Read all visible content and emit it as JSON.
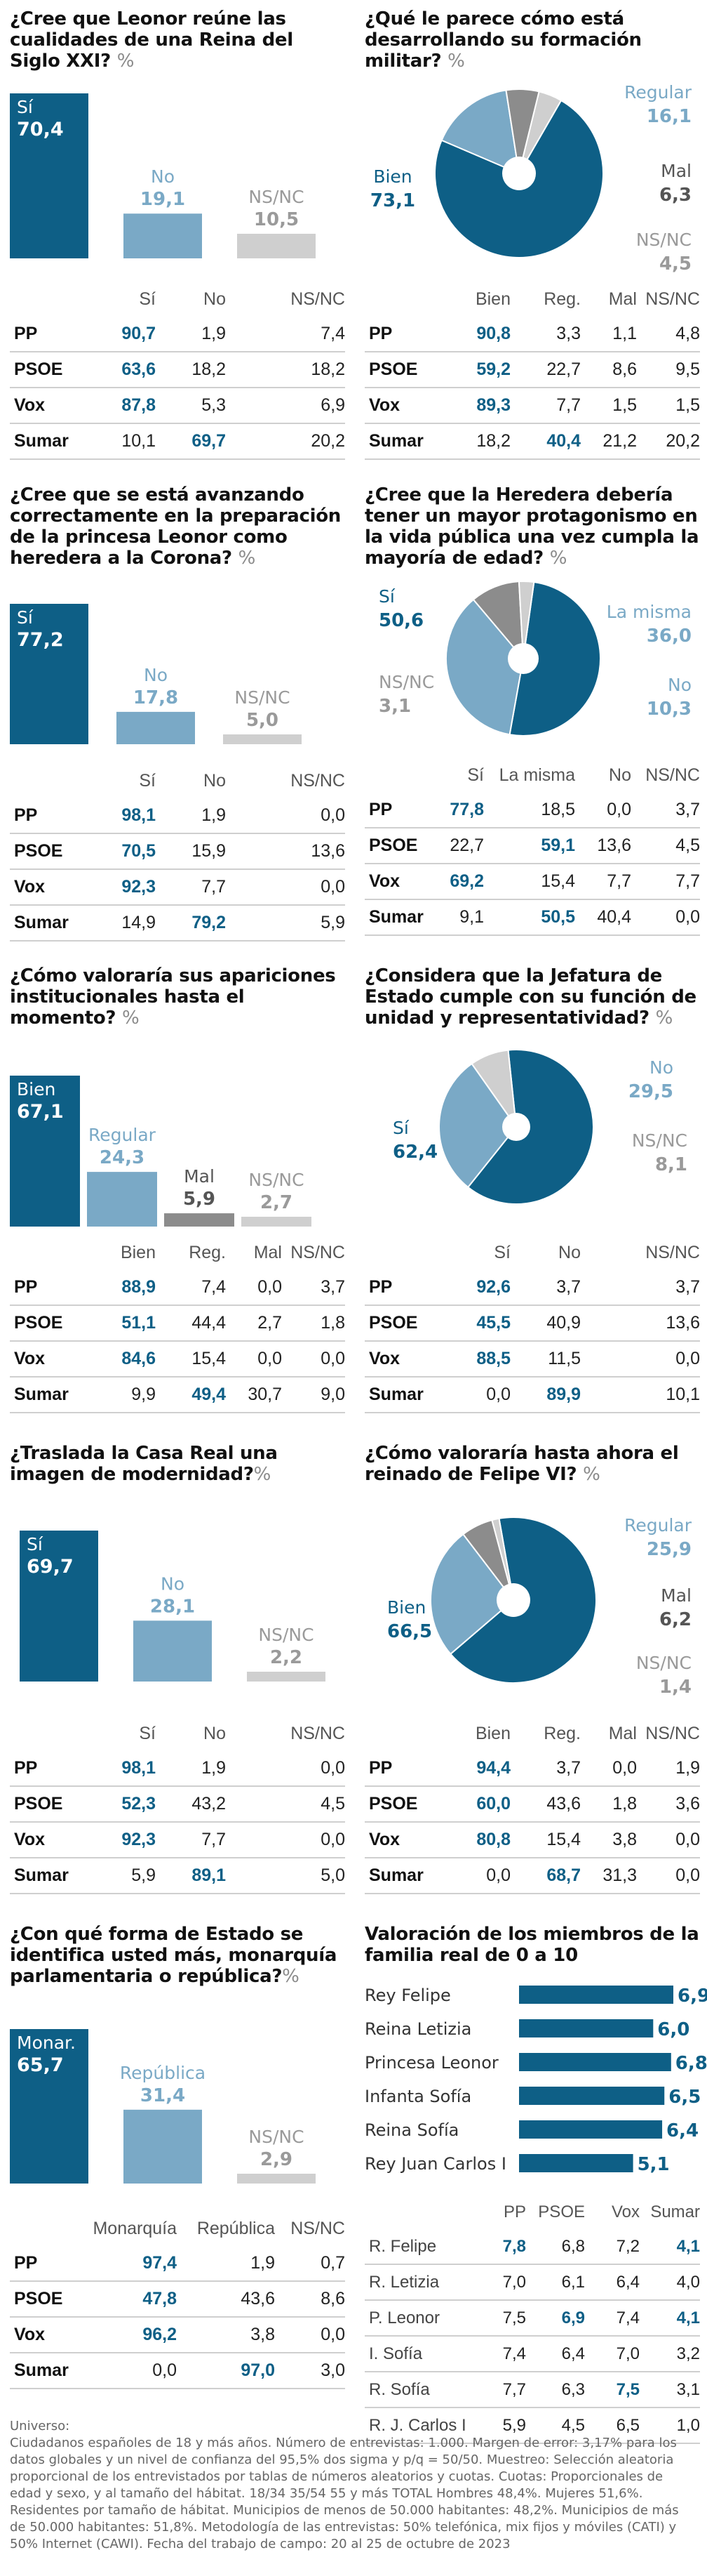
{
  "colors": {
    "dark": "#0e5f86",
    "light": "#7aa9c6",
    "gray": "#8c8c8c",
    "lightgray": "#cfcfcf",
    "hi": "#0e5f86"
  },
  "panels": [
    {
      "id": "p1",
      "question": "¿Cree que Leonor reúne las cualidades de una Reina del Siglo XXI?",
      "pct": "%",
      "chart_data": {
        "type": "bar",
        "categories": [
          "Sí",
          "No",
          "NS/NC"
        ],
        "values": [
          70.4,
          19.1,
          10.5
        ],
        "labels": [
          "70,4",
          "19,1",
          "10,5"
        ]
      },
      "columns": [
        "Sí",
        "No",
        "NS/NC"
      ],
      "rows": [
        {
          "label": "PP",
          "values": [
            "90,7",
            "1,9",
            "7,4"
          ],
          "hi": 0
        },
        {
          "label": "PSOE",
          "values": [
            "63,6",
            "18,2",
            "18,2"
          ],
          "hi": 0
        },
        {
          "label": "Vox",
          "values": [
            "87,8",
            "5,3",
            "6,9"
          ],
          "hi": 0
        },
        {
          "label": "Sumar",
          "values": [
            "10,1",
            "69,7",
            "20,2"
          ],
          "hi": 1
        }
      ]
    },
    {
      "id": "p2",
      "question": "¿Qué le parece cómo está desarrollando su formación militar?",
      "pct": "%",
      "chart_data": {
        "type": "pie",
        "categories": [
          "Bien",
          "Regular",
          "Mal",
          "NS/NC"
        ],
        "values": [
          73.1,
          16.1,
          6.3,
          4.5
        ],
        "labels": [
          "73,1",
          "16,1",
          "6,3",
          "4,5"
        ]
      },
      "columns": [
        "Bien",
        "Reg.",
        "Mal",
        "NS/NC"
      ],
      "rows": [
        {
          "label": "PP",
          "values": [
            "90,8",
            "3,3",
            "1,1",
            "4,8"
          ],
          "hi": 0
        },
        {
          "label": "PSOE",
          "values": [
            "59,2",
            "22,7",
            "8,6",
            "9,5"
          ],
          "hi": 0
        },
        {
          "label": "Vox",
          "values": [
            "89,3",
            "7,7",
            "1,5",
            "1,5"
          ],
          "hi": 0
        },
        {
          "label": "Sumar",
          "values": [
            "18,2",
            "40,4",
            "21,2",
            "20,2"
          ],
          "hi": 1
        }
      ]
    },
    {
      "id": "p3",
      "question": "¿Cree que se está avanzando correctamente en la preparación de la princesa Leonor como heredera a la Corona?",
      "pct": "%",
      "chart_data": {
        "type": "bar",
        "categories": [
          "Sí",
          "No",
          "NS/NC"
        ],
        "values": [
          77.2,
          17.8,
          5.0
        ],
        "labels": [
          "77,2",
          "17,8",
          "5,0"
        ]
      },
      "columns": [
        "Sí",
        "No",
        "NS/NC"
      ],
      "rows": [
        {
          "label": "PP",
          "values": [
            "98,1",
            "1,9",
            "0,0"
          ],
          "hi": 0
        },
        {
          "label": "PSOE",
          "values": [
            "70,5",
            "15,9",
            "13,6"
          ],
          "hi": 0
        },
        {
          "label": "Vox",
          "values": [
            "92,3",
            "7,7",
            "0,0"
          ],
          "hi": 0
        },
        {
          "label": "Sumar",
          "values": [
            "14,9",
            "79,2",
            "5,9"
          ],
          "hi": 1
        }
      ]
    },
    {
      "id": "p4",
      "question": "¿Cree que la Heredera debería tener un mayor protagonismo en la vida pública una vez cumpla la mayoría de edad?",
      "pct": "%",
      "chart_data": {
        "type": "pie",
        "categories": [
          "Sí",
          "La misma",
          "No",
          "NS/NC"
        ],
        "values": [
          50.6,
          36.0,
          10.3,
          3.1
        ],
        "labels": [
          "50,6",
          "36,0",
          "10,3",
          "3,1"
        ]
      },
      "columns": [
        "Sí",
        "La misma",
        "No",
        "NS/NC"
      ],
      "rows": [
        {
          "label": "PP",
          "values": [
            "77,8",
            "18,5",
            "0,0",
            "3,7"
          ],
          "hi": 0
        },
        {
          "label": "PSOE",
          "values": [
            "22,7",
            "59,1",
            "13,6",
            "4,5"
          ],
          "hi": 1
        },
        {
          "label": "Vox",
          "values": [
            "69,2",
            "15,4",
            "7,7",
            "7,7"
          ],
          "hi": 0
        },
        {
          "label": "Sumar",
          "values": [
            "9,1",
            "50,5",
            "40,4",
            "0,0"
          ],
          "hi": 1
        }
      ]
    },
    {
      "id": "p5",
      "question": "¿Cómo valoraría sus apariciones institucionales hasta el momento?",
      "pct": "%",
      "chart_data": {
        "type": "bar",
        "categories": [
          "Bien",
          "Regular",
          "Mal",
          "NS/NC"
        ],
        "values": [
          67.1,
          24.3,
          5.9,
          2.7
        ],
        "labels": [
          "67,1",
          "24,3",
          "5,9",
          "2,7"
        ]
      },
      "columns": [
        "Bien",
        "Reg.",
        "Mal",
        "NS/NC"
      ],
      "rows": [
        {
          "label": "PP",
          "values": [
            "88,9",
            "7,4",
            "0,0",
            "3,7"
          ],
          "hi": 0
        },
        {
          "label": "PSOE",
          "values": [
            "51,1",
            "44,4",
            "2,7",
            "1,8"
          ],
          "hi": 0
        },
        {
          "label": "Vox",
          "values": [
            "84,6",
            "15,4",
            "0,0",
            "0,0"
          ],
          "hi": 0
        },
        {
          "label": "Sumar",
          "values": [
            "9,9",
            "49,4",
            "30,7",
            "9,0"
          ],
          "hi": 1
        }
      ]
    },
    {
      "id": "p6",
      "question": "¿Considera que la Jefatura de Estado cumple con su función de unidad y representatividad?",
      "pct": "%",
      "chart_data": {
        "type": "pie",
        "categories": [
          "Sí",
          "No",
          "NS/NC"
        ],
        "values": [
          62.4,
          29.5,
          8.1
        ],
        "labels": [
          "62,4",
          "29,5",
          "8,1"
        ]
      },
      "columns": [
        "Sí",
        "No",
        "NS/NC"
      ],
      "rows": [
        {
          "label": "PP",
          "values": [
            "92,6",
            "3,7",
            "3,7"
          ],
          "hi": 0
        },
        {
          "label": "PSOE",
          "values": [
            "45,5",
            "40,9",
            "13,6"
          ],
          "hi": 0
        },
        {
          "label": "Vox",
          "values": [
            "88,5",
            "11,5",
            "0,0"
          ],
          "hi": 0
        },
        {
          "label": "Sumar",
          "values": [
            "0,0",
            "89,9",
            "10,1"
          ],
          "hi": 1
        }
      ]
    },
    {
      "id": "p7",
      "question": "¿Traslada la Casa Real una imagen de modernidad?",
      "pct": "%",
      "chart_data": {
        "type": "bar",
        "categories": [
          "Sí",
          "No",
          "NS/NC"
        ],
        "values": [
          69.7,
          28.1,
          2.2
        ],
        "labels": [
          "69,7",
          "28,1",
          "2,2"
        ]
      },
      "columns": [
        "Sí",
        "No",
        "NS/NC"
      ],
      "rows": [
        {
          "label": "PP",
          "values": [
            "98,1",
            "1,9",
            "0,0"
          ],
          "hi": 0
        },
        {
          "label": "PSOE",
          "values": [
            "52,3",
            "43,2",
            "4,5"
          ],
          "hi": 0
        },
        {
          "label": "Vox",
          "values": [
            "92,3",
            "7,7",
            "0,0"
          ],
          "hi": 0
        },
        {
          "label": "Sumar",
          "values": [
            "5,9",
            "89,1",
            "5,0"
          ],
          "hi": 1
        }
      ]
    },
    {
      "id": "p8",
      "question": "¿Cómo valoraría hasta ahora el reinado de Felipe VI?",
      "pct": "%",
      "chart_data": {
        "type": "pie",
        "categories": [
          "Bien",
          "Regular",
          "Mal",
          "NS/NC"
        ],
        "values": [
          66.5,
          25.9,
          6.2,
          1.4
        ],
        "labels": [
          "66,5",
          "25,9",
          "6,2",
          "1,4"
        ]
      },
      "columns": [
        "Bien",
        "Reg.",
        "Mal",
        "NS/NC"
      ],
      "rows": [
        {
          "label": "PP",
          "values": [
            "94,4",
            "3,7",
            "0,0",
            "1,9"
          ],
          "hi": 0
        },
        {
          "label": "PSOE",
          "values": [
            "60,0",
            "43,6",
            "1,8",
            "3,6"
          ],
          "hi": 0
        },
        {
          "label": "Vox",
          "values": [
            "80,8",
            "15,4",
            "3,8",
            "0,0"
          ],
          "hi": 0
        },
        {
          "label": "Sumar",
          "values": [
            "0,0",
            "68,7",
            "31,3",
            "0,0"
          ],
          "hi": 1
        }
      ]
    },
    {
      "id": "p9",
      "question": "¿Con qué forma de Estado se identifica usted más, monarquía parlamentaria o república?",
      "pct": "%",
      "chart_data": {
        "type": "bar",
        "categories": [
          "Monar.",
          "República",
          "NS/NC"
        ],
        "values": [
          65.7,
          31.4,
          2.9
        ],
        "labels": [
          "65,7",
          "31,4",
          "2,9"
        ]
      },
      "columns": [
        "Monarquía",
        "República",
        "NS/NC"
      ],
      "rows": [
        {
          "label": "PP",
          "values": [
            "97,4",
            "1,9",
            "0,7"
          ],
          "hi": 0
        },
        {
          "label": "PSOE",
          "values": [
            "47,8",
            "43,6",
            "8,6"
          ],
          "hi": 0
        },
        {
          "label": "Vox",
          "values": [
            "96,2",
            "3,8",
            "0,0"
          ],
          "hi": 0
        },
        {
          "label": "Sumar",
          "values": [
            "0,0",
            "97,0",
            "3,0"
          ],
          "hi": 1
        }
      ]
    },
    {
      "id": "p10",
      "question": "Valoración de los miembros de la familia real de 0 a 10",
      "pct": "",
      "chart_data": {
        "type": "bar",
        "orientation": "horizontal",
        "categories": [
          "Rey Felipe",
          "Reina Letizia",
          "Princesa Leonor",
          "Infanta Sofía",
          "Reina Sofía",
          "Rey Juan Carlos I"
        ],
        "values": [
          6.9,
          6.0,
          6.8,
          6.5,
          6.4,
          5.1
        ],
        "labels": [
          "6,9",
          "6,0",
          "6,8",
          "6,5",
          "6,4",
          "5,1"
        ]
      },
      "columns": [
        "PP",
        "PSOE",
        "Vox",
        "Sumar"
      ],
      "rows": [
        {
          "label": "R. Felipe",
          "values": [
            "7,8",
            "6,8",
            "7,2",
            "4,1"
          ],
          "hl": [
            0,
            3
          ]
        },
        {
          "label": "R. Letizia",
          "values": [
            "7,0",
            "6,1",
            "6,4",
            "4,0"
          ],
          "hl": []
        },
        {
          "label": "P. Leonor",
          "values": [
            "7,5",
            "6,9",
            "7,4",
            "4,1"
          ],
          "hl": [
            1,
            3
          ]
        },
        {
          "label": "I. Sofía",
          "values": [
            "7,4",
            "6,4",
            "7,0",
            "3,2"
          ],
          "hl": []
        },
        {
          "label": "R. Sofía",
          "values": [
            "7,7",
            "6,3",
            "7,5",
            "3,1"
          ],
          "hl": [
            2
          ]
        },
        {
          "label": "R. J. Carlos I",
          "values": [
            "5,9",
            "4,5",
            "6,5",
            "1,0"
          ],
          "hl": []
        }
      ]
    }
  ],
  "footer": "Universo:\nCiudadanos españoles de 18 y más años. Número de entrevistas: 1.000. Margen de error: 3,17% para los datos globales y un nivel de confianza del 95,5% dos sigma y p/q = 50/50. Muestreo: Selección aleatoria proporcional de los entrevistados por tablas de números aleatorios y cuotas. Cuotas: Proporcionales de edad y sexo, y al tamaño del hábitat. 18/34 35/54 55 y más TOTAL Hombres 48,4%. Mujeres 51,6%. Residentes por tamaño de hábitat. Municipios de menos de 50.000 habitantes: 48,2%. Municipios de más de 50.000 habitantes: 51,8%. Metodología de las entrevistas: 50% telefónica, mix fijos y móviles (CATI) y 50% Internet (CAWI). Fecha del trabajo de campo: 20 al 25 de octubre de 2023"
}
